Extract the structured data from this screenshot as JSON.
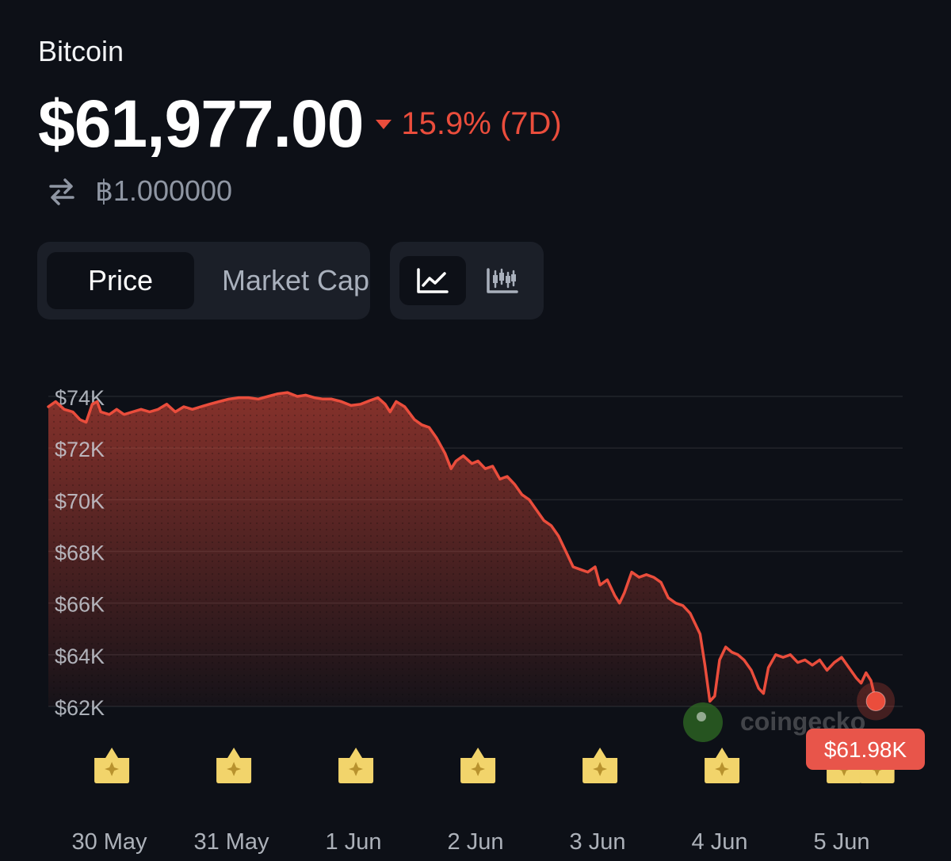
{
  "header": {
    "coin_name": "Bitcoin",
    "price": "$61,977.00",
    "change": "15.9% (7D)",
    "btc_value": "฿1.000000"
  },
  "tabs": [
    {
      "label": "Price",
      "active": true
    },
    {
      "label": "Market Cap",
      "active": false
    }
  ],
  "view_toggle": [
    {
      "icon": "line-chart-icon",
      "active": true
    },
    {
      "icon": "candlestick-chart-icon",
      "active": false
    }
  ],
  "watermark": "coingecko",
  "colors": {
    "background": "#0d1017",
    "line": "#ea4d3c",
    "negative": "#ea4d3c",
    "badge": "#e8554a",
    "marker": "#f2d46b"
  },
  "chart_data": {
    "type": "area",
    "x_range": [
      0,
      7
    ],
    "ylim": [
      62000,
      74000
    ],
    "y_ticks": [
      74000,
      72000,
      70000,
      68000,
      66000,
      64000,
      62000
    ],
    "y_tick_labels": [
      "$74K",
      "$72K",
      "$70K",
      "$68K",
      "$66K",
      "$64K",
      "$62K"
    ],
    "x_ticks": [
      0.5,
      1.5,
      2.5,
      3.5,
      4.5,
      5.5,
      6.5
    ],
    "x_tick_labels": [
      "30 May",
      "31 May",
      "1 Jun",
      "2 Jun",
      "3 Jun",
      "4 Jun",
      "5 Jun"
    ],
    "grid": true,
    "current_label": "$61.98K",
    "event_markers_x": [
      0.52,
      1.52,
      2.52,
      3.52,
      4.52,
      5.52,
      6.52,
      6.79
    ],
    "points": [
      [
        0.0,
        73600
      ],
      [
        0.06,
        73800
      ],
      [
        0.13,
        73500
      ],
      [
        0.2,
        73400
      ],
      [
        0.26,
        73100
      ],
      [
        0.31,
        73000
      ],
      [
        0.36,
        73700
      ],
      [
        0.4,
        73800
      ],
      [
        0.43,
        73400
      ],
      [
        0.5,
        73300
      ],
      [
        0.56,
        73500
      ],
      [
        0.62,
        73300
      ],
      [
        0.69,
        73400
      ],
      [
        0.76,
        73500
      ],
      [
        0.83,
        73400
      ],
      [
        0.9,
        73500
      ],
      [
        0.97,
        73700
      ],
      [
        1.04,
        73400
      ],
      [
        1.11,
        73600
      ],
      [
        1.18,
        73500
      ],
      [
        1.25,
        73600
      ],
      [
        1.32,
        73700
      ],
      [
        1.4,
        73800
      ],
      [
        1.48,
        73900
      ],
      [
        1.56,
        73950
      ],
      [
        1.64,
        73950
      ],
      [
        1.72,
        73900
      ],
      [
        1.8,
        74000
      ],
      [
        1.88,
        74100
      ],
      [
        1.96,
        74150
      ],
      [
        2.04,
        74000
      ],
      [
        2.11,
        74050
      ],
      [
        2.18,
        73950
      ],
      [
        2.25,
        73900
      ],
      [
        2.32,
        73900
      ],
      [
        2.4,
        73800
      ],
      [
        2.48,
        73650
      ],
      [
        2.56,
        73700
      ],
      [
        2.64,
        73850
      ],
      [
        2.7,
        73950
      ],
      [
        2.76,
        73700
      ],
      [
        2.8,
        73400
      ],
      [
        2.85,
        73800
      ],
      [
        2.92,
        73600
      ],
      [
        3.0,
        73100
      ],
      [
        3.06,
        72900
      ],
      [
        3.12,
        72800
      ],
      [
        3.18,
        72400
      ],
      [
        3.25,
        71800
      ],
      [
        3.3,
        71200
      ],
      [
        3.34,
        71500
      ],
      [
        3.4,
        71700
      ],
      [
        3.47,
        71400
      ],
      [
        3.52,
        71500
      ],
      [
        3.58,
        71200
      ],
      [
        3.64,
        71300
      ],
      [
        3.7,
        70800
      ],
      [
        3.76,
        70900
      ],
      [
        3.82,
        70600
      ],
      [
        3.88,
        70200
      ],
      [
        3.94,
        70000
      ],
      [
        4.0,
        69600
      ],
      [
        4.06,
        69200
      ],
      [
        4.12,
        69000
      ],
      [
        4.18,
        68600
      ],
      [
        4.24,
        68000
      ],
      [
        4.3,
        67400
      ],
      [
        4.36,
        67300
      ],
      [
        4.42,
        67200
      ],
      [
        4.48,
        67400
      ],
      [
        4.52,
        66700
      ],
      [
        4.58,
        66900
      ],
      [
        4.64,
        66300
      ],
      [
        4.68,
        66000
      ],
      [
        4.72,
        66400
      ],
      [
        4.78,
        67200
      ],
      [
        4.84,
        67000
      ],
      [
        4.9,
        67100
      ],
      [
        4.96,
        67000
      ],
      [
        5.02,
        66800
      ],
      [
        5.08,
        66200
      ],
      [
        5.14,
        66000
      ],
      [
        5.2,
        65900
      ],
      [
        5.26,
        65600
      ],
      [
        5.3,
        65200
      ],
      [
        5.34,
        64800
      ],
      [
        5.38,
        63600
      ],
      [
        5.42,
        62200
      ],
      [
        5.46,
        62400
      ],
      [
        5.5,
        63800
      ],
      [
        5.55,
        64300
      ],
      [
        5.6,
        64100
      ],
      [
        5.65,
        64000
      ],
      [
        5.7,
        63800
      ],
      [
        5.76,
        63400
      ],
      [
        5.82,
        62700
      ],
      [
        5.86,
        62500
      ],
      [
        5.9,
        63500
      ],
      [
        5.96,
        64000
      ],
      [
        6.02,
        63900
      ],
      [
        6.08,
        64000
      ],
      [
        6.14,
        63700
      ],
      [
        6.2,
        63800
      ],
      [
        6.26,
        63600
      ],
      [
        6.32,
        63800
      ],
      [
        6.38,
        63400
      ],
      [
        6.44,
        63700
      ],
      [
        6.5,
        63900
      ],
      [
        6.56,
        63500
      ],
      [
        6.62,
        63100
      ],
      [
        6.66,
        62900
      ],
      [
        6.7,
        63300
      ],
      [
        6.74,
        63000
      ],
      [
        6.78,
        62200
      ]
    ]
  }
}
